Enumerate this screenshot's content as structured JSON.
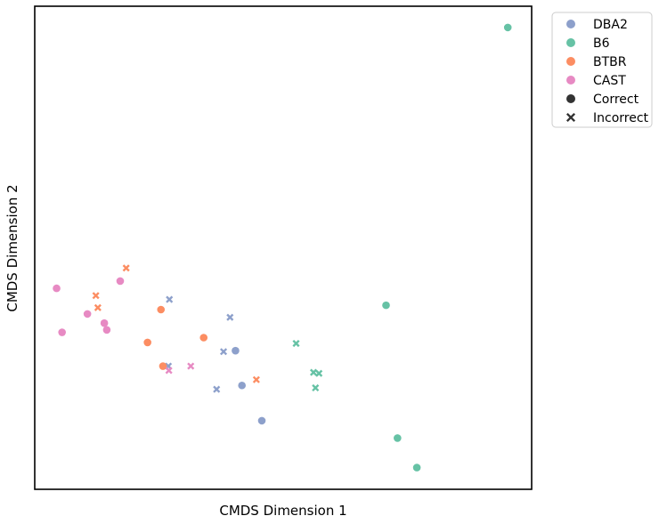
{
  "chart_data": {
    "type": "scatter",
    "title": "",
    "xlabel": "CMDS Dimension 1",
    "ylabel": "CMDS Dimension 2",
    "xlim": [
      0,
      100
    ],
    "ylim": [
      0,
      100
    ],
    "ticks_shown": false,
    "grid": false,
    "legend_position": "outside-top-right",
    "series": [
      {
        "name": "DBA2",
        "color": "#8DA0CB",
        "points": [
          {
            "x": 27.1,
            "y": 39.3,
            "marker": "Incorrect"
          },
          {
            "x": 39.3,
            "y": 35.6,
            "marker": "Incorrect"
          },
          {
            "x": 38.0,
            "y": 28.5,
            "marker": "Incorrect"
          },
          {
            "x": 36.6,
            "y": 20.7,
            "marker": "Incorrect"
          },
          {
            "x": 26.9,
            "y": 25.5,
            "marker": "Incorrect"
          },
          {
            "x": 40.4,
            "y": 28.7,
            "marker": "Correct"
          },
          {
            "x": 41.7,
            "y": 21.5,
            "marker": "Correct"
          },
          {
            "x": 45.7,
            "y": 14.2,
            "marker": "Correct"
          }
        ]
      },
      {
        "name": "B6",
        "color": "#66C2A5",
        "points": [
          {
            "x": 95.2,
            "y": 95.6,
            "marker": "Correct"
          },
          {
            "x": 70.7,
            "y": 38.1,
            "marker": "Correct"
          },
          {
            "x": 73.0,
            "y": 10.6,
            "marker": "Correct"
          },
          {
            "x": 76.9,
            "y": 4.5,
            "marker": "Correct"
          },
          {
            "x": 52.6,
            "y": 30.2,
            "marker": "Incorrect"
          },
          {
            "x": 56.1,
            "y": 24.2,
            "marker": "Incorrect"
          },
          {
            "x": 57.2,
            "y": 24.0,
            "marker": "Incorrect"
          },
          {
            "x": 56.5,
            "y": 21.0,
            "marker": "Incorrect"
          }
        ]
      },
      {
        "name": "BTBR",
        "color": "#FC8D62",
        "points": [
          {
            "x": 18.4,
            "y": 45.8,
            "marker": "Incorrect"
          },
          {
            "x": 12.3,
            "y": 40.1,
            "marker": "Incorrect"
          },
          {
            "x": 12.7,
            "y": 37.6,
            "marker": "Incorrect"
          },
          {
            "x": 44.6,
            "y": 22.7,
            "marker": "Incorrect"
          },
          {
            "x": 25.4,
            "y": 37.2,
            "marker": "Correct"
          },
          {
            "x": 22.7,
            "y": 30.4,
            "marker": "Correct"
          },
          {
            "x": 34.0,
            "y": 31.4,
            "marker": "Correct"
          },
          {
            "x": 25.8,
            "y": 25.5,
            "marker": "Correct"
          }
        ]
      },
      {
        "name": "CAST",
        "color": "#E78AC3",
        "points": [
          {
            "x": 4.4,
            "y": 41.6,
            "marker": "Correct"
          },
          {
            "x": 17.2,
            "y": 43.1,
            "marker": "Correct"
          },
          {
            "x": 10.6,
            "y": 36.3,
            "marker": "Correct"
          },
          {
            "x": 14.0,
            "y": 34.4,
            "marker": "Correct"
          },
          {
            "x": 14.5,
            "y": 33.0,
            "marker": "Correct"
          },
          {
            "x": 5.5,
            "y": 32.5,
            "marker": "Correct"
          },
          {
            "x": 31.4,
            "y": 25.5,
            "marker": "Incorrect"
          },
          {
            "x": 27.0,
            "y": 24.6,
            "marker": "Incorrect"
          }
        ]
      }
    ],
    "legend": {
      "entries": [
        {
          "label": "DBA2",
          "kind": "color",
          "color": "#8DA0CB"
        },
        {
          "label": "B6",
          "kind": "color",
          "color": "#66C2A5"
        },
        {
          "label": "BTBR",
          "kind": "color",
          "color": "#FC8D62"
        },
        {
          "label": "CAST",
          "kind": "color",
          "color": "#E78AC3"
        },
        {
          "label": "Correct",
          "kind": "marker",
          "marker": "circle",
          "color": "#333333"
        },
        {
          "label": "Incorrect",
          "kind": "marker",
          "marker": "x",
          "color": "#333333"
        }
      ]
    }
  }
}
